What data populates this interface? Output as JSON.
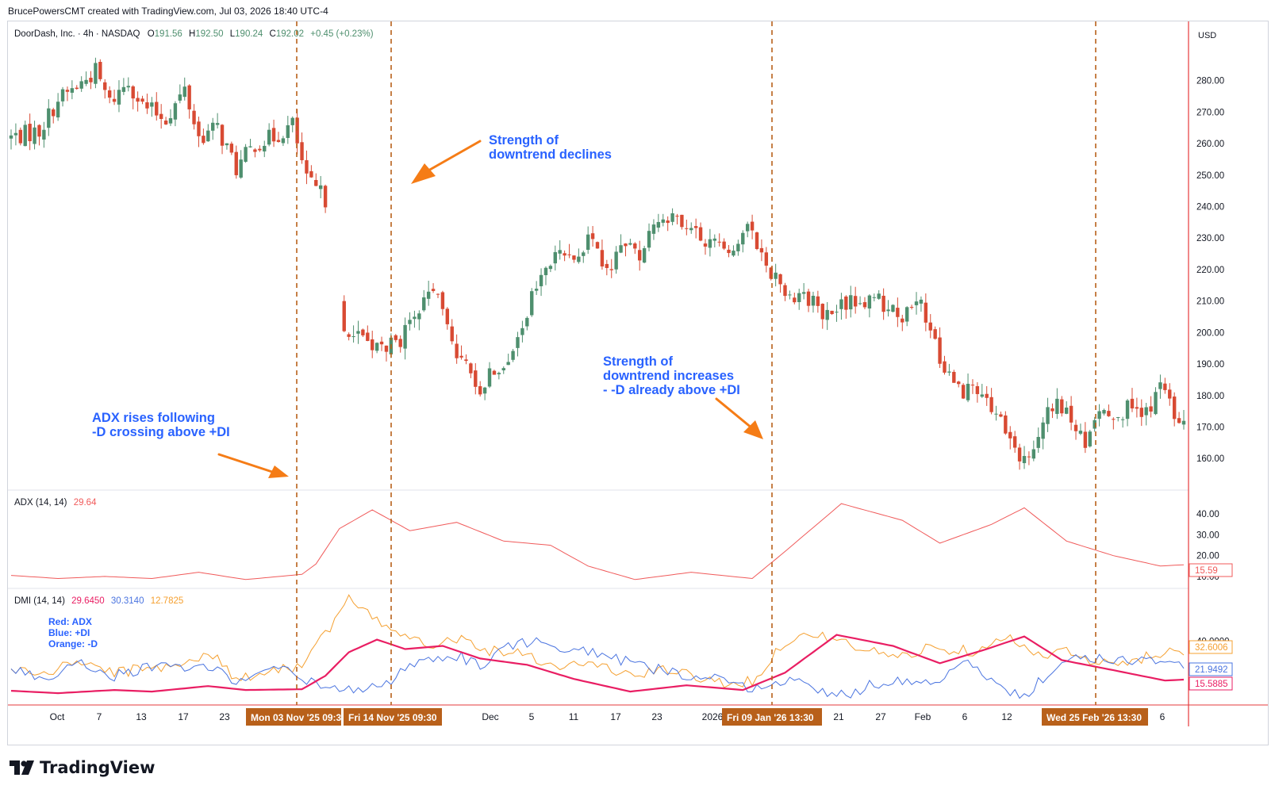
{
  "header": {
    "credit": "BrucePowersCMT created with TradingView.com, Jul 03, 2026 18:40 UTC-4"
  },
  "logo": {
    "text": "TradingView",
    "icon": "tradingview-logo-icon"
  },
  "colors": {
    "up": "#4e8f6e",
    "down": "#d84a33",
    "adx": "#f05a5a",
    "dmi_adx": "#e91e63",
    "plus_di": "#4a74e0",
    "minus_di": "#f5a030",
    "annotation": "#2962ff",
    "arrow": "#f57c16",
    "marker": "#b8601a",
    "price_axis_line": "#e5393b"
  },
  "price_panel": {
    "legend": {
      "name": "DoorDash, Inc. · 4h · NASDAQ",
      "o_label": "O",
      "o": "191.56",
      "h_label": "H",
      "h": "192.50",
      "l_label": "L",
      "l": "190.24",
      "c_label": "C",
      "c": "192.02",
      "change": "+0.45 (+0.23%)"
    },
    "currency": "USD"
  },
  "adx_panel": {
    "legend": {
      "name": "ADX (14, 14)",
      "value": "29.64"
    },
    "last_value": "15.59"
  },
  "dmi_panel": {
    "legend": {
      "name": "DMI (14, 14)",
      "adx": "29.6450",
      "plus_di": "30.3140",
      "minus_di": "12.7825"
    },
    "key": {
      "line1": "Red: ADX",
      "line2": "Blue: +DI",
      "line3": "Orange: -D"
    },
    "last_values": {
      "minus_di": "32.6006",
      "plus_di": "21.9492",
      "adx": "15.5885"
    }
  },
  "annotations": {
    "a1": {
      "line1": "ADX rises following",
      "line2": "-D crossing above +DI"
    },
    "a2": {
      "line1": "Strength of",
      "line2": "downtrend declines"
    },
    "a3": {
      "line1": "Strength of",
      "line2": "downtrend increases",
      "line3": "- -D already above +DI"
    }
  },
  "time_markers": [
    "Mon 03 Nov '25   09:30",
    "Fri 14 Nov '25   09:30",
    "Fri 09 Jan '26   13:30",
    "Wed 25 Feb '26   13:30"
  ],
  "x_axis_labels": [
    "Oct",
    "7",
    "13",
    "17",
    "23",
    "Dec",
    "5",
    "11",
    "17",
    "23",
    "2026",
    "21",
    "27",
    "Feb",
    "6",
    "12",
    "6"
  ],
  "chart_data": [
    {
      "type": "candlestick",
      "title": "DoorDash, Inc. · 4h · NASDAQ",
      "ylim": [
        152,
        292
      ],
      "y_ticks": [
        160,
        170,
        180,
        190,
        200,
        210,
        220,
        230,
        240,
        250,
        260,
        270,
        280
      ],
      "price_anchors": [
        [
          0,
          262
        ],
        [
          6,
          264
        ],
        [
          10,
          274
        ],
        [
          14,
          278
        ],
        [
          18,
          283
        ],
        [
          21,
          273
        ],
        [
          25,
          280
        ],
        [
          28,
          272
        ],
        [
          33,
          268
        ],
        [
          37,
          277
        ],
        [
          40,
          262
        ],
        [
          44,
          265
        ],
        [
          48,
          252
        ],
        [
          52,
          260
        ],
        [
          56,
          262
        ],
        [
          60,
          266
        ],
        [
          63,
          248
        ],
        [
          66,
          244
        ],
        [
          68,
          241
        ],
        [
          71,
          200
        ],
        [
          74,
          200
        ],
        [
          78,
          195
        ],
        [
          82,
          196
        ],
        [
          86,
          203
        ],
        [
          90,
          215
        ],
        [
          93,
          202
        ],
        [
          96,
          190
        ],
        [
          100,
          183
        ],
        [
          104,
          190
        ],
        [
          108,
          196
        ],
        [
          112,
          215
        ],
        [
          116,
          224
        ],
        [
          120,
          226
        ],
        [
          124,
          229
        ],
        [
          127,
          218
        ],
        [
          130,
          229
        ],
        [
          134,
          225
        ],
        [
          137,
          234
        ],
        [
          139,
          238
        ],
        [
          144,
          232
        ],
        [
          150,
          228
        ],
        [
          154,
          228
        ],
        [
          158,
          233
        ],
        [
          161,
          222
        ],
        [
          165,
          213
        ],
        [
          169,
          212
        ],
        [
          174,
          205
        ],
        [
          179,
          210
        ],
        [
          185,
          210
        ],
        [
          190,
          205
        ],
        [
          194,
          208
        ],
        [
          198,
          192
        ],
        [
          202,
          182
        ],
        [
          205,
          182
        ],
        [
          207,
          178
        ],
        [
          211,
          172
        ],
        [
          214,
          161
        ],
        [
          218,
          160
        ],
        [
          221,
          178
        ],
        [
          225,
          174
        ],
        [
          229,
          164
        ],
        [
          232,
          176
        ],
        [
          236,
          175
        ],
        [
          240,
          176
        ],
        [
          243,
          174
        ],
        [
          245,
          184
        ],
        [
          248,
          174
        ],
        [
          250,
          169
        ]
      ],
      "adx_anchors": [
        [
          0,
          10.5
        ],
        [
          10,
          9
        ],
        [
          20,
          10
        ],
        [
          30,
          9
        ],
        [
          40,
          12
        ],
        [
          50,
          8.5
        ],
        [
          62,
          11
        ],
        [
          65,
          16
        ],
        [
          70,
          33
        ],
        [
          77,
          42
        ],
        [
          85,
          32
        ],
        [
          95,
          36
        ],
        [
          105,
          27
        ],
        [
          115,
          25
        ],
        [
          123,
          15
        ],
        [
          133,
          8.5
        ],
        [
          145,
          12
        ],
        [
          158,
          9
        ],
        [
          165,
          22
        ],
        [
          177,
          45
        ],
        [
          190,
          37
        ],
        [
          198,
          26
        ],
        [
          209,
          35
        ],
        [
          216,
          43
        ],
        [
          225,
          27
        ],
        [
          235,
          20
        ],
        [
          245,
          15
        ],
        [
          250,
          15.6
        ]
      ],
      "minus_di_anchors": [
        [
          0,
          22
        ],
        [
          8,
          19
        ],
        [
          14,
          28
        ],
        [
          22,
          20
        ],
        [
          30,
          23
        ],
        [
          44,
          31
        ],
        [
          48,
          15
        ],
        [
          55,
          22
        ],
        [
          62,
          24
        ],
        [
          64,
          37
        ],
        [
          68,
          47
        ],
        [
          72,
          67
        ],
        [
          78,
          52
        ],
        [
          85,
          44
        ],
        [
          90,
          38
        ],
        [
          96,
          42
        ],
        [
          102,
          34
        ],
        [
          110,
          33
        ],
        [
          115,
          24
        ],
        [
          124,
          26
        ],
        [
          132,
          18
        ],
        [
          140,
          22
        ],
        [
          150,
          14
        ],
        [
          158,
          14
        ],
        [
          165,
          40
        ],
        [
          172,
          45
        ],
        [
          178,
          38
        ],
        [
          184,
          33
        ],
        [
          190,
          30
        ],
        [
          195,
          36
        ],
        [
          205,
          34
        ],
        [
          212,
          44
        ],
        [
          218,
          30
        ],
        [
          224,
          35
        ],
        [
          230,
          26
        ],
        [
          236,
          25
        ],
        [
          242,
          30
        ],
        [
          246,
          34
        ],
        [
          250,
          32.6
        ]
      ],
      "plus_di_anchors": [
        [
          0,
          22
        ],
        [
          8,
          16
        ],
        [
          14,
          28
        ],
        [
          22,
          18
        ],
        [
          30,
          24
        ],
        [
          40,
          23
        ],
        [
          44,
          22
        ],
        [
          48,
          15
        ],
        [
          58,
          23
        ],
        [
          64,
          14
        ],
        [
          70,
          8
        ],
        [
          80,
          12
        ],
        [
          83,
          22
        ],
        [
          90,
          28
        ],
        [
          96,
          30
        ],
        [
          100,
          24
        ],
        [
          106,
          38
        ],
        [
          114,
          40
        ],
        [
          120,
          34
        ],
        [
          128,
          30
        ],
        [
          136,
          23
        ],
        [
          142,
          20
        ],
        [
          150,
          16
        ],
        [
          155,
          10
        ],
        [
          160,
          12
        ],
        [
          166,
          15
        ],
        [
          174,
          8
        ],
        [
          178,
          6
        ],
        [
          183,
          12
        ],
        [
          190,
          15
        ],
        [
          196,
          14
        ],
        [
          204,
          26
        ],
        [
          208,
          16
        ],
        [
          214,
          6
        ],
        [
          217,
          8
        ],
        [
          222,
          22
        ],
        [
          228,
          30
        ],
        [
          236,
          28
        ],
        [
          242,
          27
        ],
        [
          245,
          30
        ],
        [
          250,
          22
        ]
      ],
      "dmi_adx_anchors": [
        [
          0,
          8.5
        ],
        [
          10,
          7
        ],
        [
          22,
          9
        ],
        [
          30,
          8
        ],
        [
          42,
          11.5
        ],
        [
          50,
          9
        ],
        [
          62,
          9.5
        ],
        [
          67,
          18
        ],
        [
          72,
          33
        ],
        [
          78,
          41
        ],
        [
          84,
          35
        ],
        [
          92,
          37
        ],
        [
          100,
          29
        ],
        [
          110,
          25
        ],
        [
          120,
          16
        ],
        [
          132,
          8
        ],
        [
          144,
          12
        ],
        [
          156,
          9
        ],
        [
          165,
          20
        ],
        [
          176,
          44
        ],
        [
          188,
          37
        ],
        [
          198,
          26
        ],
        [
          208,
          35
        ],
        [
          216,
          43
        ],
        [
          224,
          28
        ],
        [
          236,
          21
        ],
        [
          246,
          15
        ],
        [
          250,
          15.6
        ]
      ]
    }
  ]
}
